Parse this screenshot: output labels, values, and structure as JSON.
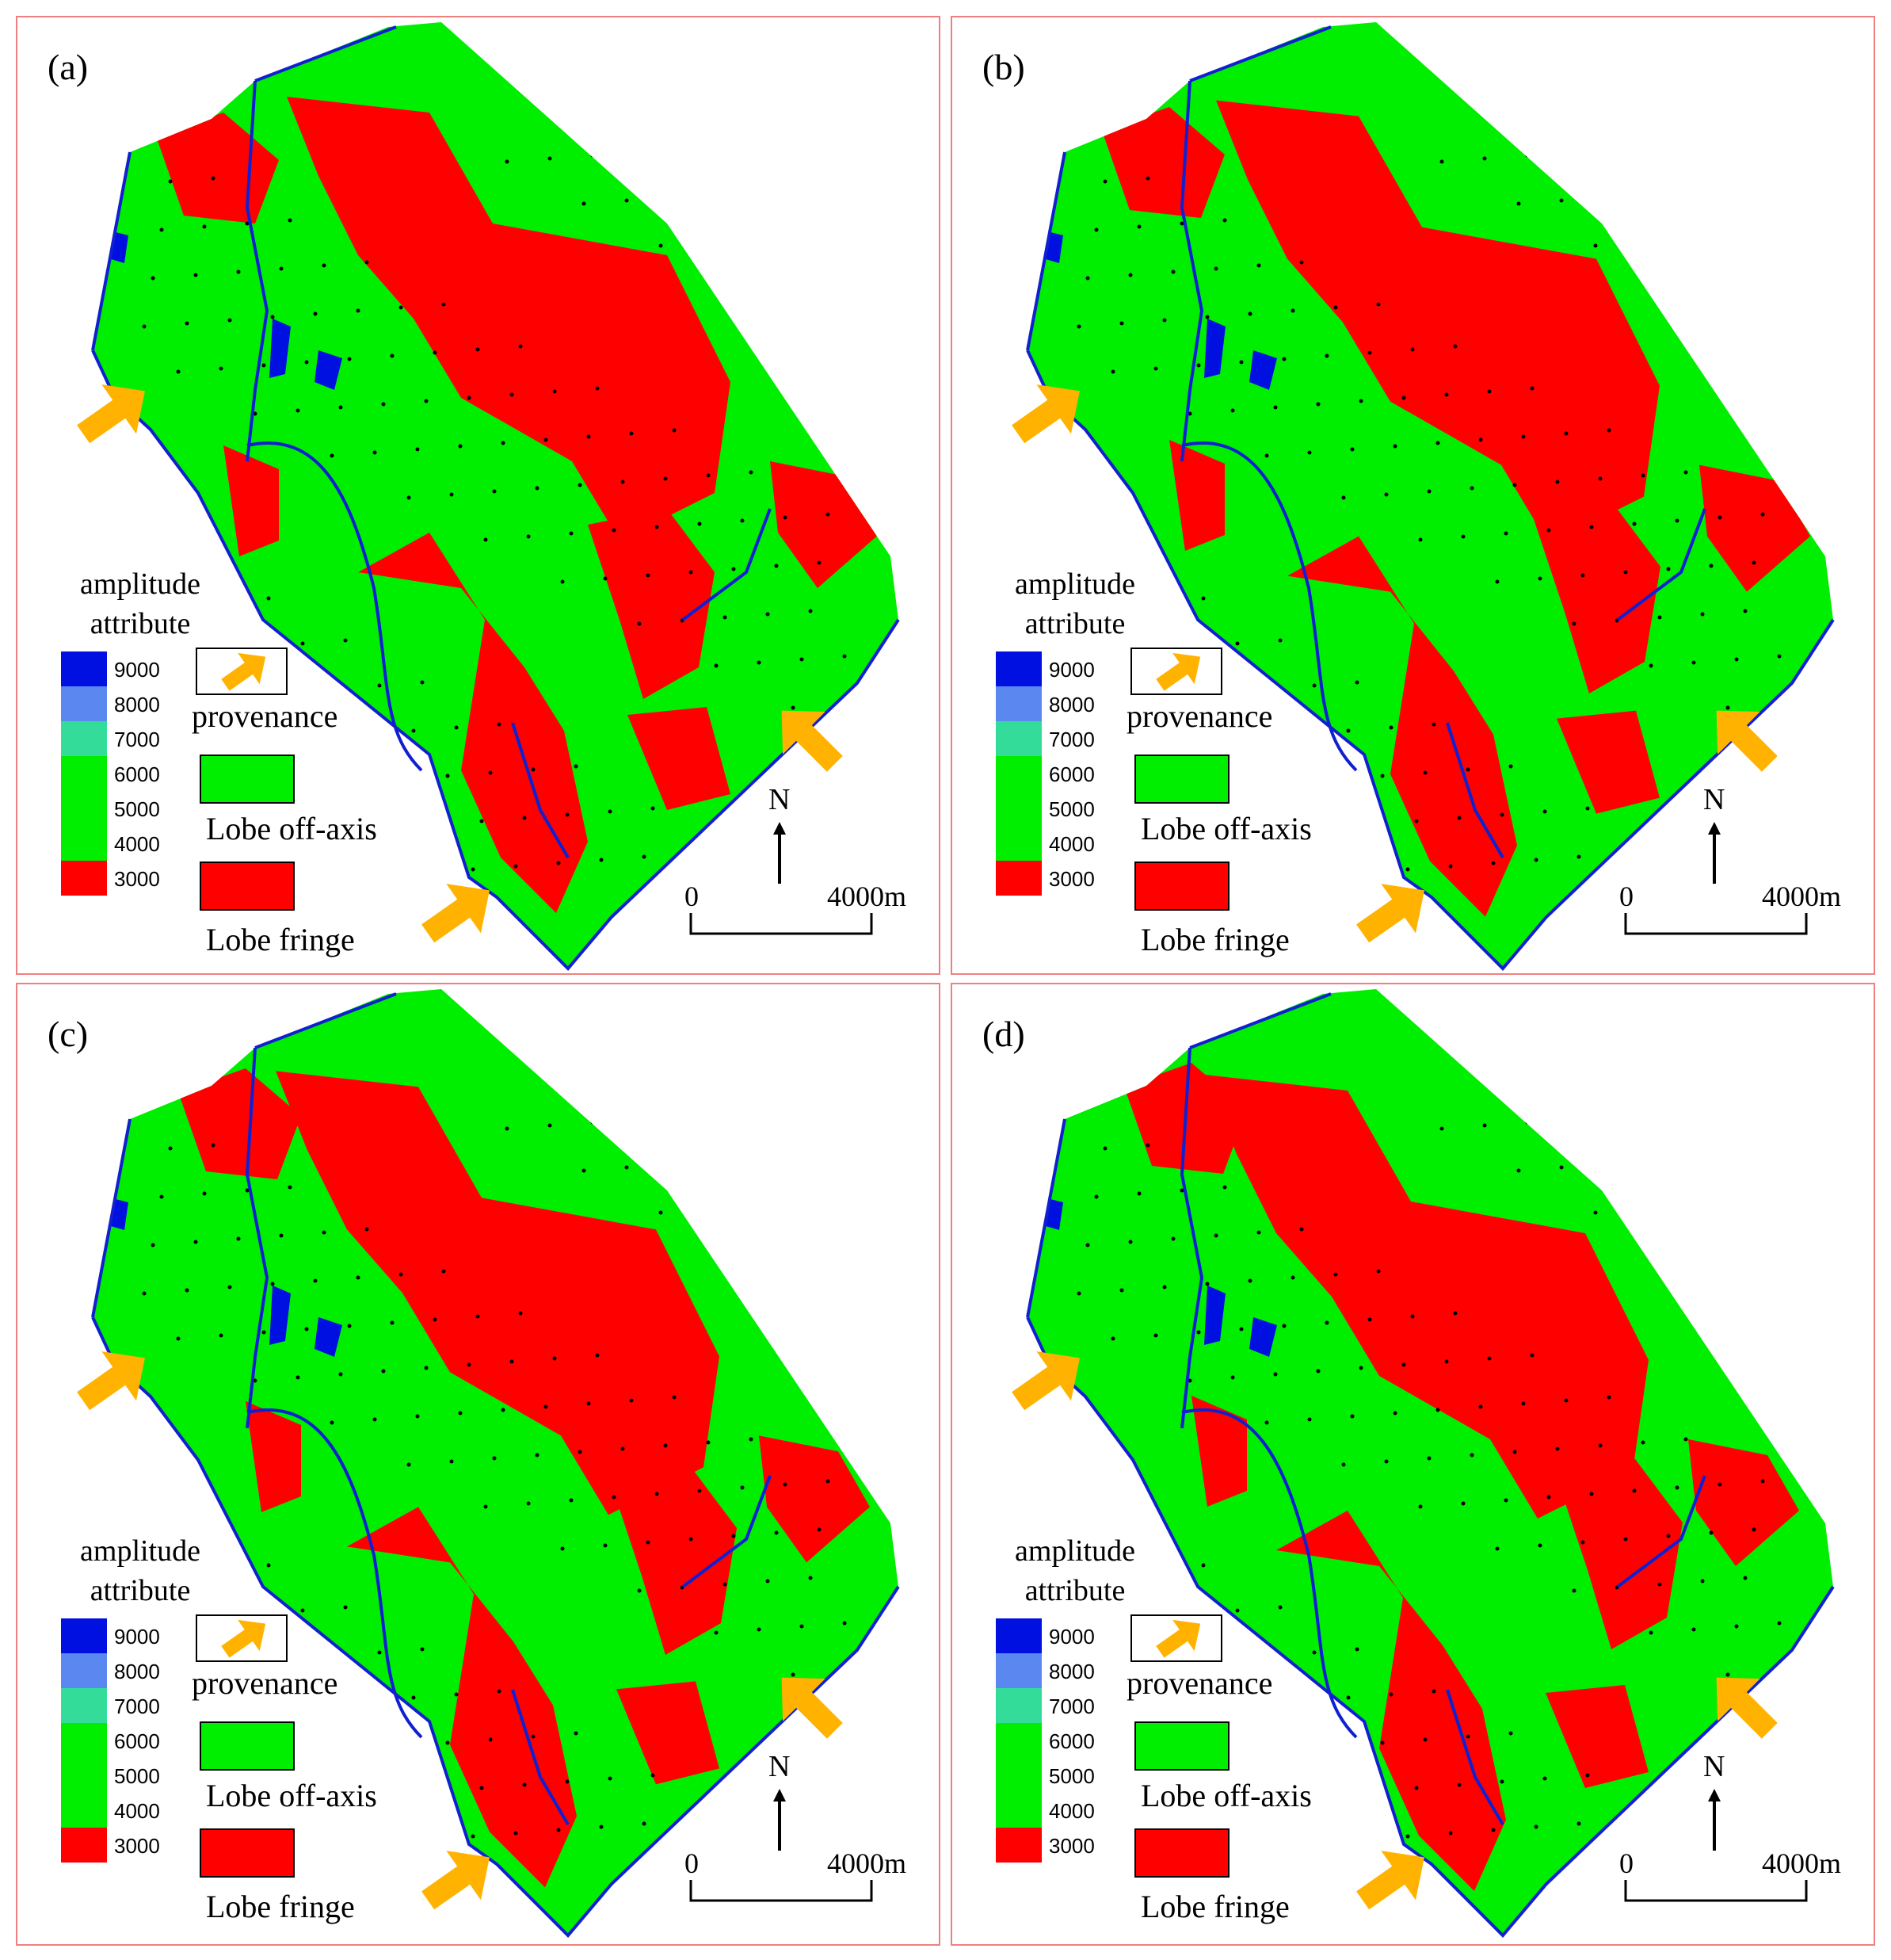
{
  "colors": {
    "red": "#ff0000",
    "green": "#00ee00",
    "teal": "#33dd99",
    "lightblue": "#5b88f0",
    "darkblue": "#0010e0",
    "fault": "#1020d0",
    "arrow": "#ffb300",
    "frame": "#f08080"
  },
  "panels": [
    {
      "label": "(a)"
    },
    {
      "label": "(b)"
    },
    {
      "label": "(c)"
    },
    {
      "label": "(d)"
    }
  ],
  "legend": {
    "title_line1": "amplitude",
    "title_line2": "attribute",
    "ticks": [
      "9000",
      "8000",
      "7000",
      "6000",
      "5000",
      "4000",
      "3000"
    ],
    "categories": [
      "provenance",
      "Lobe off-axis",
      "Lobe fringe"
    ]
  },
  "north_label": "N",
  "scale": {
    "start": "0",
    "end": "4000m"
  }
}
